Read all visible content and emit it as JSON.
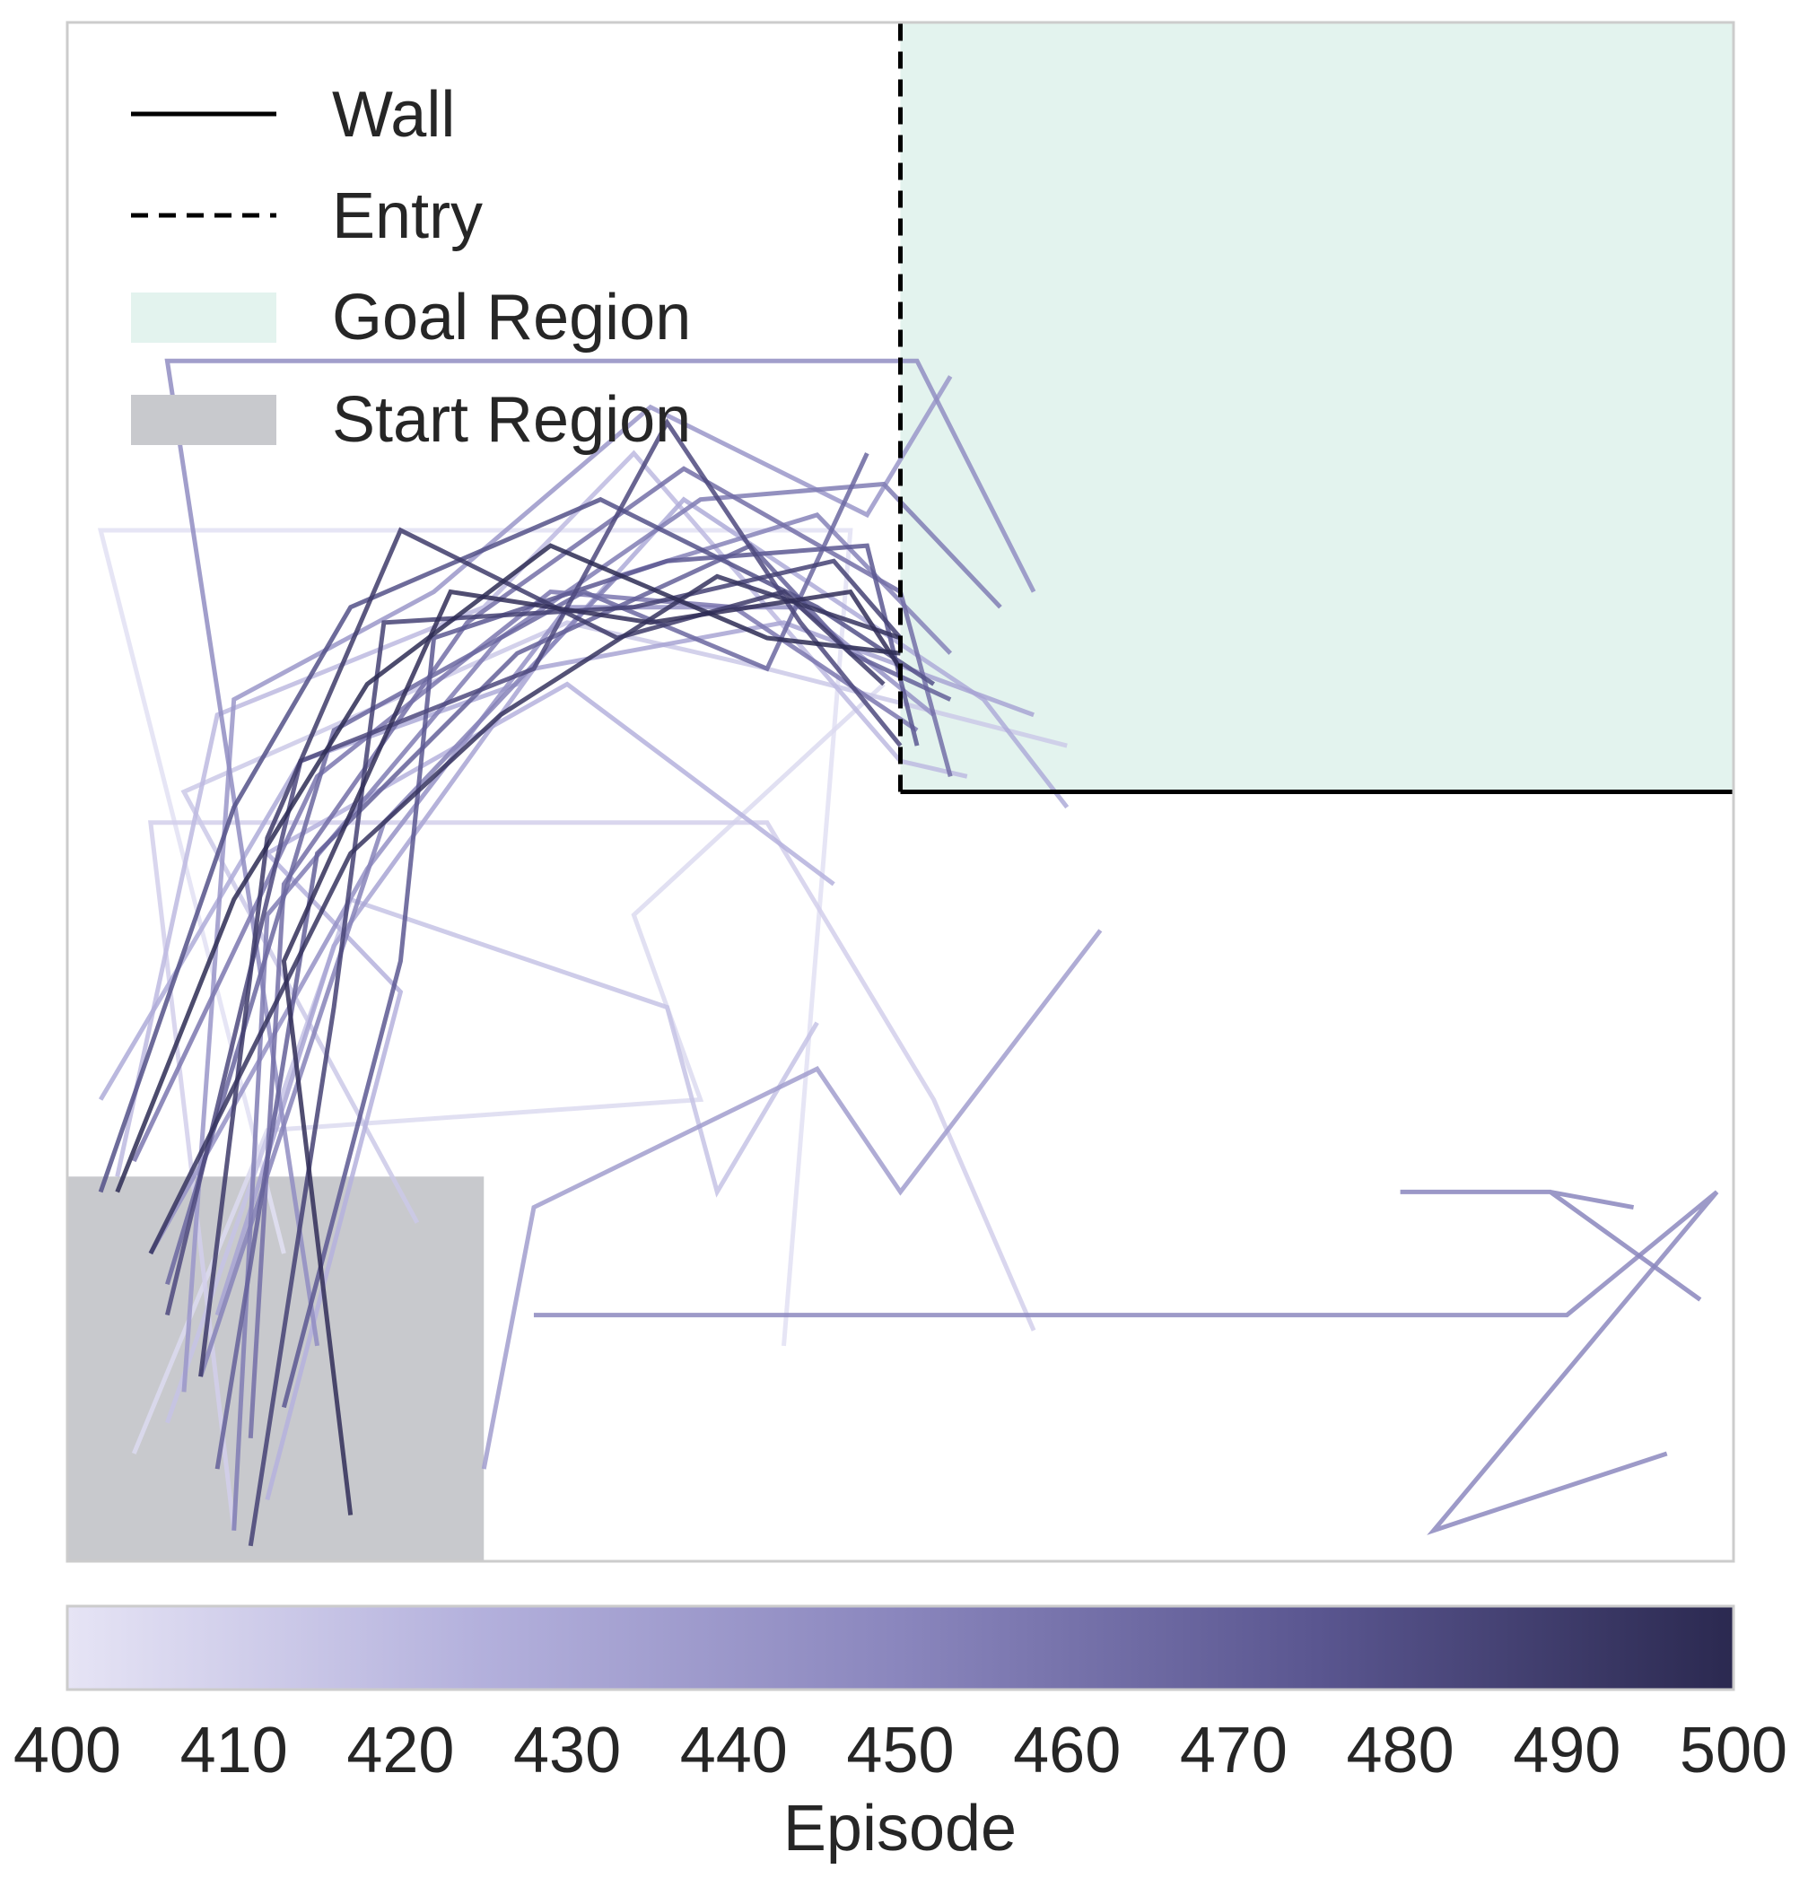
{
  "chart_data": {
    "type": "line",
    "title": "",
    "xlim": [
      0,
      1
    ],
    "ylim": [
      0,
      1
    ],
    "grid": false,
    "legend": {
      "placement": "top-left",
      "entries": [
        {
          "label": "Wall",
          "style": "solid"
        },
        {
          "label": "Entry",
          "style": "dashed"
        },
        {
          "label": "Goal Region",
          "style": "patch",
          "color": "#e3f3ee"
        },
        {
          "label": "Start Region",
          "style": "patch",
          "color": "#c8c9cd"
        }
      ]
    },
    "regions": {
      "goal": {
        "x": [
          0.5,
          1.0
        ],
        "y": [
          0.5,
          1.0
        ],
        "color": "#e3f3ee"
      },
      "start": {
        "x": [
          0.0,
          0.25
        ],
        "y": [
          0.0,
          0.25
        ],
        "color": "#c8c9cd"
      }
    },
    "walls": {
      "wall": {
        "x": [
          0.5,
          1.0
        ],
        "y": [
          0.5,
          0.5
        ],
        "color": "#000000"
      },
      "entry": {
        "x": [
          0.5,
          0.5
        ],
        "y": [
          0.5,
          1.0
        ],
        "color": "#000000"
      }
    },
    "colorbar": {
      "label": "Episode",
      "min": 400,
      "max": 500,
      "ticks": [
        400,
        410,
        420,
        430,
        440,
        450,
        460,
        470,
        480,
        490,
        500
      ],
      "colors": [
        "#e6e4f5",
        "#b3b0dc",
        "#8a86bd",
        "#5a5690",
        "#2b2950"
      ]
    },
    "series": [
      {
        "episode": 402,
        "x": [
          0.13,
          0.02,
          0.47,
          0.43
        ],
        "y": [
          0.2,
          0.67,
          0.67,
          0.14
        ]
      },
      {
        "episode": 405,
        "x": [
          0.04,
          0.12,
          0.38,
          0.34,
          0.49
        ],
        "y": [
          0.07,
          0.28,
          0.3,
          0.42,
          0.57
        ]
      },
      {
        "episode": 410,
        "x": [
          0.1,
          0.05,
          0.42,
          0.52,
          0.58
        ],
        "y": [
          0.02,
          0.48,
          0.48,
          0.3,
          0.15
        ]
      },
      {
        "episode": 413,
        "x": [
          0.21,
          0.07,
          0.3,
          0.42,
          0.6
        ],
        "y": [
          0.22,
          0.5,
          0.61,
          0.58,
          0.53
        ]
      },
      {
        "episode": 416,
        "x": [
          0.06,
          0.17,
          0.36,
          0.39,
          0.45
        ],
        "y": [
          0.09,
          0.43,
          0.36,
          0.24,
          0.35
        ]
      },
      {
        "episode": 420,
        "x": [
          0.03,
          0.09,
          0.25,
          0.34,
          0.5,
          0.54
        ],
        "y": [
          0.25,
          0.55,
          0.62,
          0.72,
          0.52,
          0.51
        ]
      },
      {
        "episode": 424,
        "x": [
          0.12,
          0.2,
          0.12,
          0.3,
          0.46
        ],
        "y": [
          0.04,
          0.37,
          0.46,
          0.57,
          0.44
        ]
      },
      {
        "episode": 428,
        "x": [
          0.02,
          0.14,
          0.27,
          0.37,
          0.55,
          0.6
        ],
        "y": [
          0.3,
          0.52,
          0.57,
          0.69,
          0.56,
          0.49
        ]
      },
      {
        "episode": 432,
        "x": [
          0.09,
          0.16,
          0.28,
          0.43,
          0.58
        ],
        "y": [
          0.16,
          0.4,
          0.58,
          0.61,
          0.55
        ]
      },
      {
        "episode": 436,
        "x": [
          0.25,
          0.28,
          0.45,
          0.5,
          0.62
        ],
        "y": [
          0.06,
          0.23,
          0.32,
          0.24,
          0.41
        ]
      },
      {
        "episode": 440,
        "x": [
          0.07,
          0.1,
          0.22,
          0.35,
          0.48,
          0.53
        ],
        "y": [
          0.11,
          0.56,
          0.63,
          0.75,
          0.68,
          0.77
        ]
      },
      {
        "episode": 443,
        "x": [
          0.05,
          0.18,
          0.3,
          0.44,
          0.52
        ],
        "y": [
          0.2,
          0.45,
          0.62,
          0.62,
          0.55
        ]
      },
      {
        "episode": 446,
        "x": [
          0.15,
          0.06,
          0.51,
          0.58
        ],
        "y": [
          0.14,
          0.78,
          0.78,
          0.63
        ]
      },
      {
        "episode": 449,
        "x": [
          0.28,
          0.9,
          0.99,
          0.82,
          0.96
        ],
        "y": [
          0.16,
          0.16,
          0.24,
          0.02,
          0.07
        ]
      },
      {
        "episode": 450,
        "x": [
          0.8,
          0.89,
          0.98,
          0.89,
          0.94
        ],
        "y": [
          0.24,
          0.24,
          0.17,
          0.24,
          0.23
        ]
      },
      {
        "episode": 452,
        "x": [
          0.08,
          0.19,
          0.33,
          0.45,
          0.53
        ],
        "y": [
          0.12,
          0.48,
          0.64,
          0.68,
          0.59
        ]
      },
      {
        "episode": 455,
        "x": [
          0.1,
          0.12,
          0.26,
          0.38,
          0.49,
          0.56
        ],
        "y": [
          0.02,
          0.42,
          0.6,
          0.69,
          0.7,
          0.62
        ]
      },
      {
        "episode": 458,
        "x": [
          0.04,
          0.15,
          0.29,
          0.4,
          0.51
        ],
        "y": [
          0.26,
          0.51,
          0.63,
          0.62,
          0.54
        ]
      },
      {
        "episode": 462,
        "x": [
          0.11,
          0.13,
          0.24,
          0.37,
          0.5,
          0.53
        ],
        "y": [
          0.08,
          0.44,
          0.61,
          0.71,
          0.63,
          0.51
        ]
      },
      {
        "episode": 466,
        "x": [
          0.06,
          0.16,
          0.31,
          0.42,
          0.48
        ],
        "y": [
          0.18,
          0.54,
          0.63,
          0.58,
          0.72
        ]
      },
      {
        "episode": 470,
        "x": [
          0.09,
          0.15,
          0.27,
          0.41,
          0.47,
          0.53
        ],
        "y": [
          0.06,
          0.46,
          0.59,
          0.66,
          0.59,
          0.56
        ]
      },
      {
        "episode": 474,
        "x": [
          0.13,
          0.2,
          0.22,
          0.36,
          0.48,
          0.51
        ],
        "y": [
          0.1,
          0.39,
          0.6,
          0.65,
          0.66,
          0.53
        ]
      },
      {
        "episode": 478,
        "x": [
          0.02,
          0.1,
          0.17,
          0.32,
          0.45,
          0.52
        ],
        "y": [
          0.24,
          0.49,
          0.62,
          0.69,
          0.62,
          0.57
        ]
      },
      {
        "episode": 482,
        "x": [
          0.06,
          0.14,
          0.28,
          0.36,
          0.44,
          0.5
        ],
        "y": [
          0.16,
          0.52,
          0.58,
          0.74,
          0.61,
          0.53
        ]
      },
      {
        "episode": 486,
        "x": [
          0.11,
          0.16,
          0.19,
          0.34,
          0.46,
          0.5
        ],
        "y": [
          0.01,
          0.36,
          0.61,
          0.62,
          0.65,
          0.6
        ]
      },
      {
        "episode": 490,
        "x": [
          0.08,
          0.12,
          0.2,
          0.33,
          0.43,
          0.49
        ],
        "y": [
          0.12,
          0.47,
          0.67,
          0.6,
          0.63,
          0.57
        ]
      },
      {
        "episode": 494,
        "x": [
          0.05,
          0.17,
          0.26,
          0.39,
          0.5
        ],
        "y": [
          0.2,
          0.46,
          0.55,
          0.64,
          0.6
        ]
      },
      {
        "episode": 497,
        "x": [
          0.17,
          0.13,
          0.23,
          0.35,
          0.47,
          0.5
        ],
        "y": [
          0.03,
          0.39,
          0.63,
          0.61,
          0.63,
          0.58
        ]
      },
      {
        "episode": 499,
        "x": [
          0.03,
          0.1,
          0.18,
          0.29,
          0.42,
          0.5
        ],
        "y": [
          0.24,
          0.43,
          0.57,
          0.66,
          0.6,
          0.59
        ]
      }
    ]
  }
}
